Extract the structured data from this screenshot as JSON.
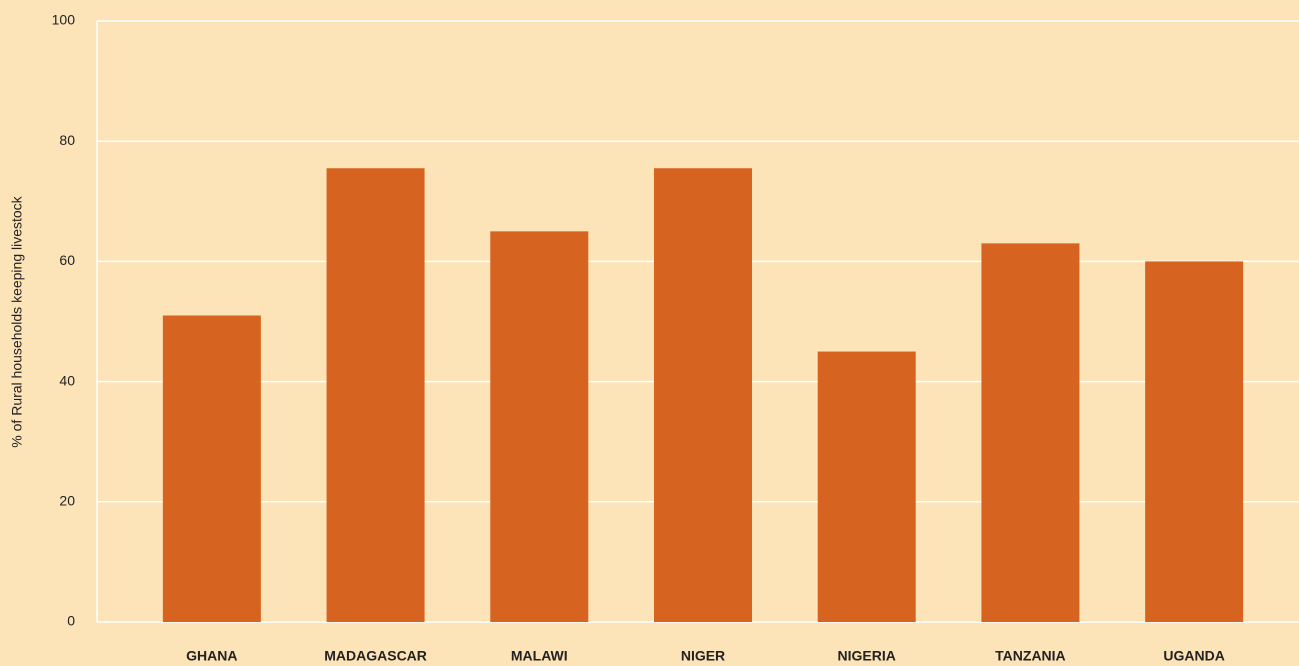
{
  "chart_data": {
    "type": "bar",
    "y_label": "% of Rural households keeping livestock",
    "categories": [
      "GHANA",
      "MADAGASCAR",
      "MALAWI",
      "NIGER",
      "NIGERIA",
      "TANZANIA",
      "UGANDA"
    ],
    "values": [
      51,
      75.5,
      65,
      75.5,
      45,
      63,
      60
    ],
    "color": "#d6631f",
    "ylim": [
      0,
      100
    ],
    "yticks": [
      0,
      20,
      40,
      60,
      80,
      100
    ],
    "grid": true
  }
}
